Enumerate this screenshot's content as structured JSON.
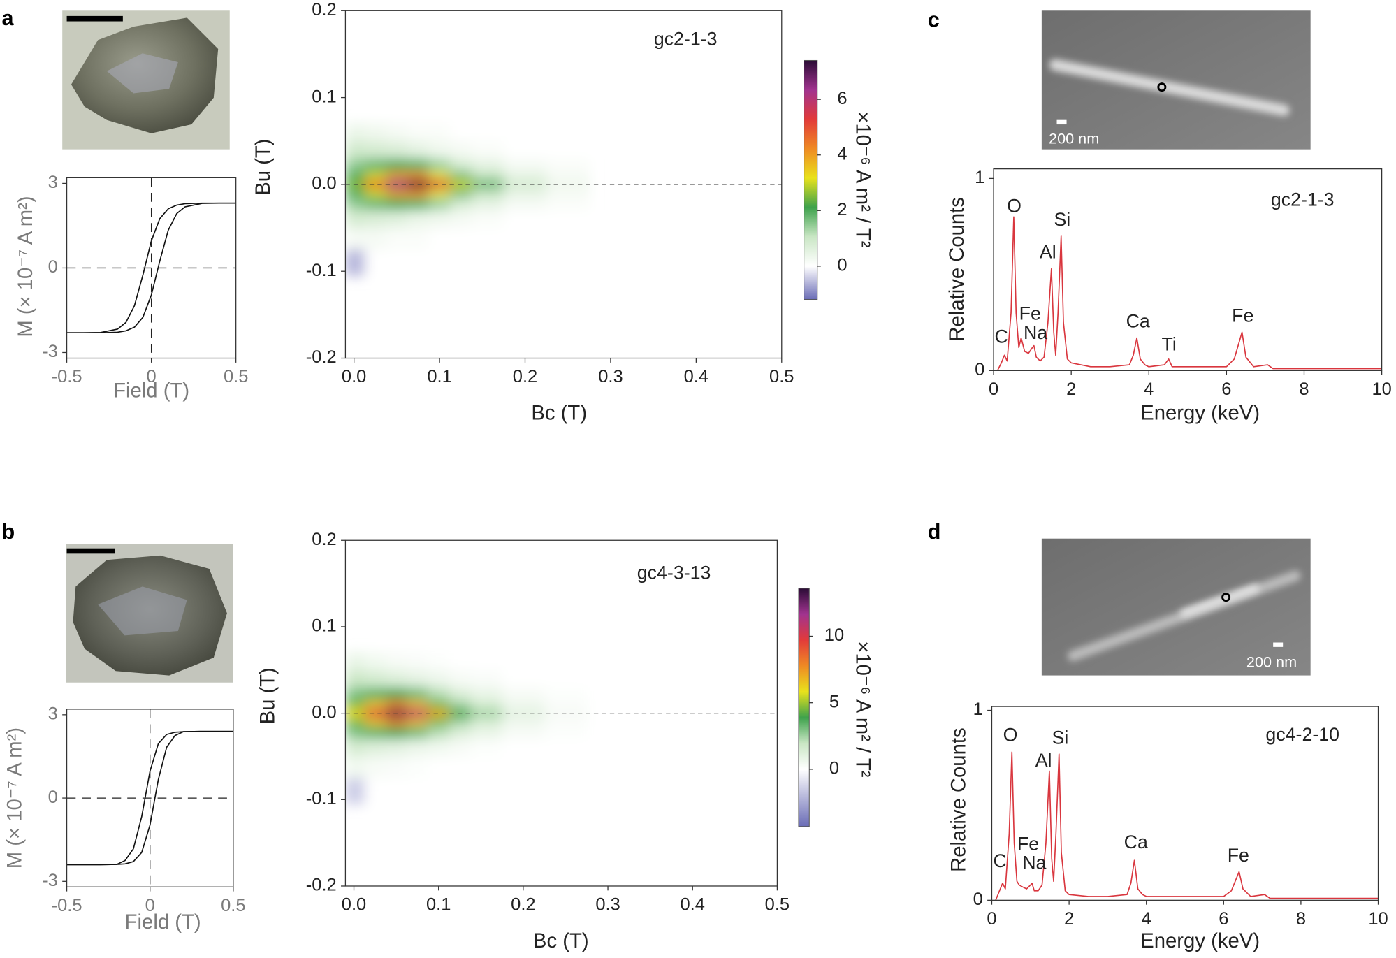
{
  "panel_labels": [
    "a",
    "b",
    "c",
    "d"
  ],
  "scale_bars": [
    "200 nm",
    "200 nm"
  ],
  "chart_data": [
    {
      "type": "line",
      "xlabel": "Field (T)",
      "ylabel": "M (× 10⁻⁷ A m²)",
      "x": [
        -0.5,
        -0.4,
        -0.3,
        -0.2,
        -0.15,
        -0.1,
        -0.05,
        0,
        0.05,
        0.1,
        0.15,
        0.2,
        0.3,
        0.4,
        0.5
      ],
      "series": [
        {
          "color": "#111111",
          "values": [
            -2.3,
            -2.3,
            -2.29,
            -2.17,
            -1.93,
            -1.34,
            -0.25,
            0.96,
            1.75,
            2.1,
            2.23,
            2.28,
            2.3,
            2.3,
            2.3
          ]
        },
        {
          "color": "#111111",
          "values": [
            -2.3,
            -2.3,
            -2.3,
            -2.28,
            -2.23,
            -2.1,
            -1.75,
            -0.96,
            0.25,
            1.34,
            1.93,
            2.17,
            2.29,
            2.3,
            2.3
          ]
        }
      ],
      "xlim": [
        -0.5,
        0.5
      ],
      "xticks": [
        -0.5,
        0,
        0.5
      ],
      "ylim": [
        -3.2,
        3.2
      ],
      "yticks": [
        -3,
        0,
        3
      ]
    },
    {
      "type": "heatmap",
      "xlabel": "Bc (T)",
      "ylabel": "Bu (T)",
      "sample": "gc2-1-3",
      "x": [
        0,
        0.025,
        0.05,
        0.075,
        0.1,
        0.125,
        0.15,
        0.2,
        0.25
      ],
      "y": [
        0.06,
        0.04,
        0.02,
        0.01,
        0,
        -0.01,
        -0.02,
        -0.04,
        -0.06,
        -0.09
      ],
      "z": [
        [
          0.4,
          0.3,
          0.2,
          0.1,
          0.1,
          0,
          0,
          0,
          0
        ],
        [
          0.9,
          0.8,
          0.7,
          0.5,
          0.3,
          0.2,
          0.1,
          0,
          0
        ],
        [
          1.5,
          1.8,
          2.0,
          1.9,
          1.4,
          0.8,
          0.5,
          0.2,
          0.1
        ],
        [
          2.0,
          3.0,
          4.0,
          4.2,
          3.2,
          1.8,
          1.1,
          0.5,
          0.2
        ],
        [
          2.5,
          4.5,
          6.5,
          7.3,
          5.5,
          3.0,
          1.8,
          0.8,
          0.3
        ],
        [
          2.0,
          3.0,
          4.0,
          4.2,
          3.2,
          1.8,
          1.1,
          0.5,
          0.2
        ],
        [
          1.5,
          1.8,
          2.0,
          1.9,
          1.4,
          0.8,
          0.5,
          0.2,
          0.1
        ],
        [
          0.8,
          0.7,
          0.6,
          0.4,
          0.3,
          0.2,
          0.1,
          0,
          0
        ],
        [
          0.2,
          0.2,
          0.1,
          0.1,
          0,
          0,
          0,
          0,
          0
        ],
        [
          -0.6,
          0,
          0,
          0,
          0,
          0,
          0,
          0,
          0
        ]
      ],
      "xlim": [
        -0.01,
        0.5
      ],
      "xticks": [
        {
          "value": 0,
          "label": "0.0"
        },
        0.1,
        0.2,
        0.3,
        0.4,
        0.5
      ],
      "ylim": [
        -0.2,
        0.2
      ],
      "yticks": [
        0.2,
        0.1,
        {
          "value": 0,
          "label": "0.0"
        },
        -0.1,
        -0.2
      ],
      "colorbar": {
        "label": "×10⁻⁶ A m² / T²",
        "zlim": [
          -1.2,
          7.4
        ],
        "ticks": [
          0,
          2,
          4,
          6
        ],
        "negative_color": "#6a6cb6",
        "colors": [
          "#ffffff",
          "#c9e6c4",
          "#3ea24c",
          "#e9e21c",
          "#ef8a24",
          "#e23a3a",
          "#a1338f",
          "#2b0c36"
        ]
      }
    },
    {
      "type": "line",
      "xlabel": "Energy (keV)",
      "ylabel": "Relative Counts",
      "sample": "gc2-1-3",
      "color": "#d9363e",
      "x": [
        0.1,
        0.2,
        0.28,
        0.35,
        0.45,
        0.52,
        0.58,
        0.65,
        0.71,
        0.8,
        0.9,
        1.0,
        1.04,
        1.1,
        1.2,
        1.3,
        1.4,
        1.49,
        1.55,
        1.6,
        1.66,
        1.74,
        1.8,
        1.9,
        2.0,
        2.5,
        3.0,
        3.5,
        3.6,
        3.69,
        3.78,
        3.9,
        4.0,
        4.4,
        4.51,
        4.6,
        5.0,
        5.5,
        6.0,
        6.2,
        6.4,
        6.5,
        6.7,
        7.06,
        7.2,
        8.0,
        9.0,
        10.0
      ],
      "values": [
        0.0,
        0.04,
        0.08,
        0.05,
        0.3,
        0.8,
        0.3,
        0.12,
        0.17,
        0.1,
        0.09,
        0.12,
        0.13,
        0.07,
        0.05,
        0.07,
        0.25,
        0.53,
        0.2,
        0.08,
        0.3,
        0.7,
        0.25,
        0.06,
        0.04,
        0.02,
        0.02,
        0.03,
        0.08,
        0.17,
        0.06,
        0.03,
        0.02,
        0.03,
        0.06,
        0.02,
        0.02,
        0.02,
        0.02,
        0.06,
        0.2,
        0.07,
        0.02,
        0.03,
        0.01,
        0.01,
        0.01,
        0.01
      ],
      "annotations": [
        {
          "text": "C",
          "x": 0.2,
          "y": 0.17
        },
        {
          "text": "O",
          "x": 0.53,
          "y": 0.85
        },
        {
          "text": "Fe",
          "x": 0.94,
          "y": 0.29
        },
        {
          "text": "Na",
          "x": 1.08,
          "y": 0.19
        },
        {
          "text": "Al",
          "x": 1.4,
          "y": 0.61
        },
        {
          "text": "Si",
          "x": 1.77,
          "y": 0.78
        },
        {
          "text": "Ca",
          "x": 3.72,
          "y": 0.25
        },
        {
          "text": "Ti",
          "x": 4.52,
          "y": 0.13
        },
        {
          "text": "Fe",
          "x": 6.42,
          "y": 0.28
        }
      ],
      "xlim": [
        0,
        10
      ],
      "xticks": [
        0,
        2,
        4,
        6,
        8,
        10
      ],
      "ylim": [
        0,
        1.05
      ],
      "yticks": [
        0,
        1
      ]
    },
    {
      "type": "line",
      "xlabel": "Field (T)",
      "ylabel": "M (× 10⁻⁷ A m²)",
      "x": [
        -0.5,
        -0.4,
        -0.3,
        -0.2,
        -0.15,
        -0.1,
        -0.05,
        0,
        0.05,
        0.1,
        0.15,
        0.2,
        0.3,
        0.4,
        0.5
      ],
      "series": [
        {
          "color": "#111111",
          "values": [
            -2.4,
            -2.4,
            -2.4,
            -2.39,
            -2.25,
            -1.83,
            -0.67,
            0.97,
            1.96,
            2.29,
            2.37,
            2.39,
            2.4,
            2.4,
            2.4
          ]
        },
        {
          "color": "#111111",
          "values": [
            -2.4,
            -2.4,
            -2.4,
            -2.39,
            -2.37,
            -2.29,
            -1.96,
            -0.97,
            0.67,
            1.83,
            2.25,
            2.39,
            2.4,
            2.4,
            2.4
          ]
        }
      ],
      "xlim": [
        -0.5,
        0.5
      ],
      "xticks": [
        -0.5,
        0,
        0.5
      ],
      "ylim": [
        -3.2,
        3.2
      ],
      "yticks": [
        -3,
        0,
        3
      ]
    },
    {
      "type": "heatmap",
      "xlabel": "Bc (T)",
      "ylabel": "Bu (T)",
      "sample": "gc4-3-13",
      "x": [
        0,
        0.025,
        0.05,
        0.075,
        0.1,
        0.125,
        0.15,
        0.2,
        0.25
      ],
      "y": [
        0.06,
        0.04,
        0.02,
        0.01,
        0,
        -0.01,
        -0.02,
        -0.04,
        -0.06,
        -0.09
      ],
      "z": [
        [
          0.8,
          0.5,
          0.3,
          0.2,
          0.1,
          0,
          0,
          0,
          0
        ],
        [
          1.8,
          1.5,
          1.2,
          0.9,
          0.6,
          0.3,
          0.2,
          0,
          0
        ],
        [
          3.0,
          3.5,
          3.8,
          3.2,
          2.2,
          1.3,
          0.8,
          0.3,
          0.1
        ],
        [
          4.5,
          6.5,
          8.0,
          6.8,
          4.4,
          2.5,
          1.5,
          0.6,
          0.2
        ],
        [
          6.0,
          10.0,
          13.2,
          11.0,
          7.0,
          4.0,
          2.5,
          1.0,
          0.3
        ],
        [
          4.5,
          6.5,
          8.0,
          6.8,
          4.4,
          2.5,
          1.5,
          0.6,
          0.2
        ],
        [
          3.0,
          3.5,
          3.8,
          3.2,
          2.2,
          1.3,
          0.8,
          0.3,
          0.1
        ],
        [
          1.5,
          1.2,
          1.0,
          0.7,
          0.5,
          0.3,
          0.1,
          0,
          0
        ],
        [
          0.5,
          0.3,
          0.2,
          0.1,
          0,
          0,
          0,
          0,
          0
        ],
        [
          -1.5,
          0,
          0,
          0,
          0,
          0,
          0,
          0,
          0
        ]
      ],
      "xlim": [
        -0.01,
        0.5
      ],
      "xticks": [
        {
          "value": 0,
          "label": "0.0"
        },
        0.1,
        0.2,
        0.3,
        0.4,
        0.5
      ],
      "ylim": [
        -0.2,
        0.2
      ],
      "yticks": [
        0.2,
        0.1,
        {
          "value": 0,
          "label": "0.0"
        },
        -0.1,
        -0.2
      ],
      "colorbar": {
        "label": "×10⁻⁶ A m² / T²",
        "zlim": [
          -4.3,
          13.6
        ],
        "ticks": [
          0,
          5,
          10
        ],
        "negative_color": "#6a6cb6",
        "colors": [
          "#ffffff",
          "#c9e6c4",
          "#3ea24c",
          "#e9e21c",
          "#ef8a24",
          "#e23a3a",
          "#a1338f",
          "#2b0c36"
        ]
      }
    },
    {
      "type": "line",
      "xlabel": "Energy (keV)",
      "ylabel": "Relative Counts",
      "sample": "gc4-2-10",
      "color": "#d9363e",
      "x": [
        0.1,
        0.2,
        0.28,
        0.35,
        0.45,
        0.52,
        0.58,
        0.65,
        0.71,
        0.8,
        0.9,
        1.0,
        1.04,
        1.1,
        1.2,
        1.3,
        1.4,
        1.49,
        1.55,
        1.6,
        1.66,
        1.74,
        1.8,
        1.9,
        2.0,
        2.5,
        3.0,
        3.5,
        3.6,
        3.69,
        3.78,
        3.9,
        4.0,
        4.4,
        4.51,
        4.6,
        5.0,
        5.5,
        6.0,
        6.2,
        6.4,
        6.5,
        6.7,
        7.06,
        7.2,
        8.0,
        9.0,
        10.0
      ],
      "values": [
        0.0,
        0.05,
        0.09,
        0.06,
        0.35,
        0.78,
        0.3,
        0.1,
        0.08,
        0.07,
        0.06,
        0.08,
        0.09,
        0.05,
        0.05,
        0.08,
        0.3,
        0.68,
        0.22,
        0.1,
        0.35,
        0.77,
        0.25,
        0.05,
        0.03,
        0.02,
        0.02,
        0.03,
        0.09,
        0.21,
        0.06,
        0.03,
        0.02,
        0.02,
        0.02,
        0.02,
        0.02,
        0.02,
        0.02,
        0.05,
        0.15,
        0.06,
        0.02,
        0.03,
        0.01,
        0.01,
        0.01,
        0.01
      ],
      "annotations": [
        {
          "text": "C",
          "x": 0.21,
          "y": 0.2
        },
        {
          "text": "O",
          "x": 0.48,
          "y": 0.865
        },
        {
          "text": "Fe",
          "x": 0.94,
          "y": 0.29
        },
        {
          "text": "Na",
          "x": 1.1,
          "y": 0.19
        },
        {
          "text": "Al",
          "x": 1.34,
          "y": 0.73
        },
        {
          "text": "Si",
          "x": 1.77,
          "y": 0.85
        },
        {
          "text": "Ca",
          "x": 3.73,
          "y": 0.3
        },
        {
          "text": "Fe",
          "x": 6.38,
          "y": 0.23
        }
      ],
      "xlim": [
        0,
        10
      ],
      "xticks": [
        0,
        2,
        4,
        6,
        8,
        10
      ],
      "ylim": [
        0,
        1.02
      ],
      "yticks": [
        0,
        1
      ]
    }
  ]
}
